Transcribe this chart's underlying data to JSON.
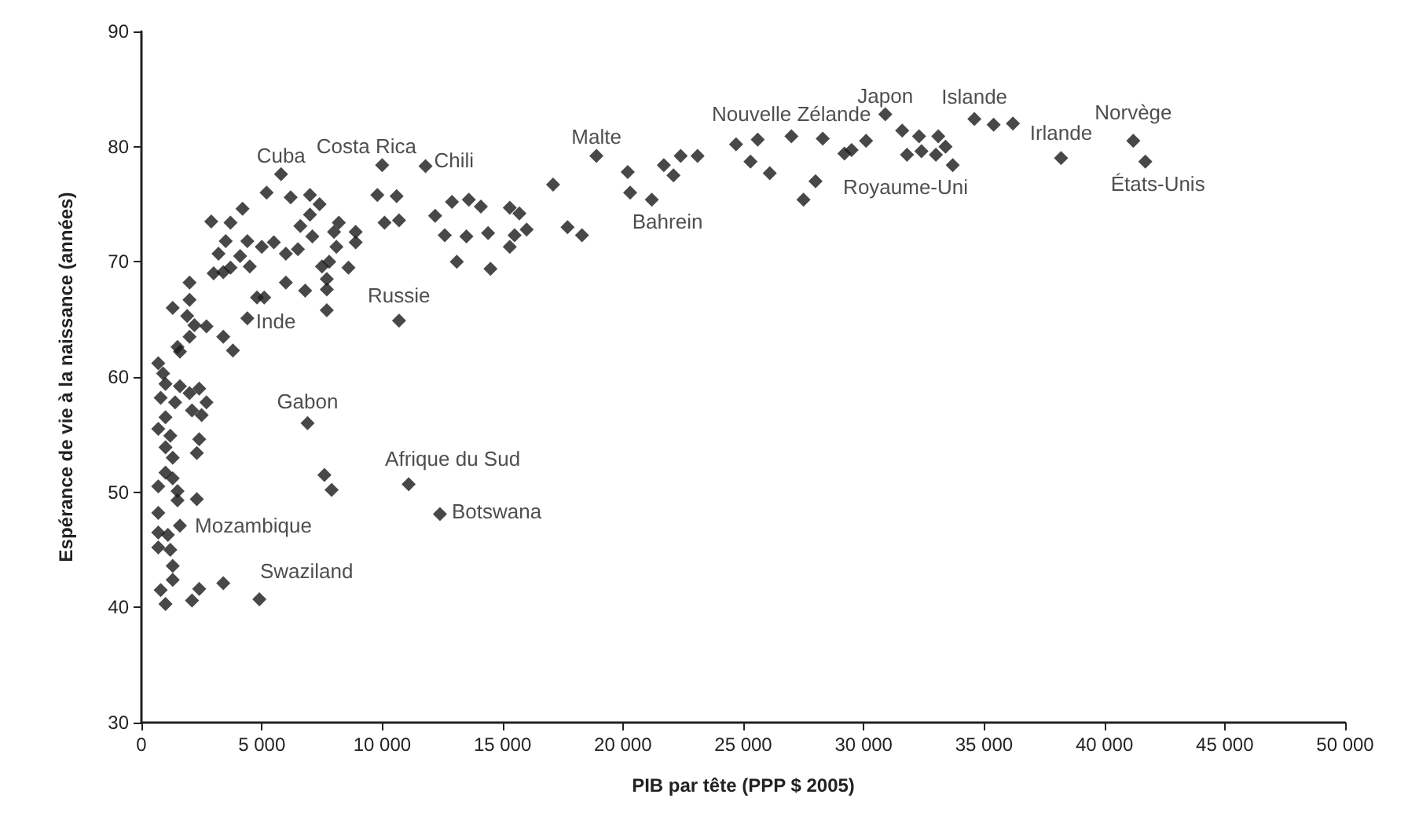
{
  "chart_data": {
    "type": "scatter",
    "xlabel": "PIB par tête (PPP $ 2005)",
    "ylabel": "Espérance de vie à la naissance (années)",
    "marker": "diamond",
    "grid": false,
    "xlim": [
      0,
      50000
    ],
    "ylim": [
      30,
      90
    ],
    "xticks": [
      0,
      {
        "value": 5000,
        "label": "5 000"
      },
      {
        "value": 10000,
        "label": "10 000"
      },
      {
        "value": 15000,
        "label": "15 000"
      },
      {
        "value": 20000,
        "label": "20 000"
      },
      {
        "value": 25000,
        "label": "25 000"
      },
      {
        "value": 30000,
        "label": "30 000"
      },
      {
        "value": 35000,
        "label": "35 000"
      },
      {
        "value": 40000,
        "label": "40 000"
      },
      {
        "value": 45000,
        "label": "45 000"
      },
      {
        "value": 50000,
        "label": "50 000"
      }
    ],
    "yticks": [
      30,
      40,
      50,
      60,
      70,
      80,
      90
    ],
    "series": [
      {
        "color": "#1a1a1a",
        "x": [
          5800,
          5200,
          6200,
          7000,
          7400,
          4200,
          2900,
          3700,
          3500,
          3200,
          3000,
          3400,
          3700,
          4100,
          4400,
          5000,
          5500,
          6000,
          6500,
          4500,
          6600,
          7000,
          7100,
          4800,
          5100,
          6000,
          6800,
          7700,
          7700,
          7700,
          7500,
          7800,
          8100,
          8000,
          8200,
          8600,
          8900,
          8900,
          4400,
          3800,
          3400,
          2700,
          1300,
          2000,
          2000,
          1900,
          2200,
          2000,
          1600,
          1500,
          700,
          900,
          1000,
          1600,
          2000,
          2400,
          2700,
          2500,
          2100,
          1400,
          800,
          1000,
          700,
          1200,
          1000,
          2400,
          2300,
          1300,
          1000,
          1300,
          700,
          1500,
          1500,
          2300,
          700,
          1600,
          700,
          1100,
          700,
          1200,
          1300,
          1300,
          800,
          1000,
          2100,
          2400,
          3400,
          4900,
          6900,
          7600,
          7900,
          11100,
          12400,
          10700,
          10000,
          11800,
          9800,
          10600,
          10100,
          10700,
          12200,
          12600,
          12900,
          13500,
          13100,
          13600,
          14100,
          14400,
          14500,
          15300,
          15700,
          15500,
          16000,
          15300,
          17100,
          17700,
          18300,
          18900,
          20200,
          20300,
          21200,
          21700,
          22100,
          22400,
          23100,
          24700,
          25600,
          25300,
          26100,
          27000,
          28300,
          27500,
          28000,
          29200,
          29500,
          30100,
          30900,
          31600,
          32300,
          33100,
          33400,
          31800,
          32400,
          33000,
          33700,
          34600,
          35400,
          36200,
          38200,
          41200,
          41700
        ],
        "values": [
          77.6,
          76.0,
          75.6,
          75.8,
          75.0,
          74.6,
          73.5,
          73.4,
          71.8,
          70.7,
          69.0,
          69.1,
          69.5,
          70.5,
          71.8,
          71.3,
          71.7,
          70.7,
          71.1,
          69.6,
          73.1,
          74.1,
          72.2,
          66.9,
          66.9,
          68.2,
          67.5,
          65.8,
          67.6,
          68.5,
          69.6,
          70.0,
          71.3,
          72.6,
          73.4,
          69.5,
          72.6,
          71.7,
          65.1,
          62.3,
          63.5,
          64.4,
          66.0,
          68.2,
          66.7,
          65.3,
          64.5,
          63.5,
          62.2,
          62.6,
          61.2,
          60.3,
          59.4,
          59.2,
          58.6,
          59.0,
          57.8,
          56.7,
          57.1,
          57.8,
          58.2,
          56.5,
          55.5,
          54.9,
          53.9,
          54.6,
          53.4,
          53.0,
          51.7,
          51.2,
          50.5,
          50.1,
          49.3,
          49.4,
          48.2,
          47.1,
          46.5,
          46.3,
          45.2,
          45.0,
          43.6,
          42.4,
          41.5,
          40.3,
          40.6,
          41.6,
          42.1,
          40.7,
          56.0,
          51.5,
          50.2,
          50.7,
          48.1,
          64.9,
          78.4,
          78.3,
          75.8,
          75.7,
          73.4,
          73.6,
          74.0,
          72.3,
          75.2,
          72.2,
          70.0,
          75.4,
          74.8,
          72.5,
          69.4,
          74.7,
          74.2,
          72.3,
          72.8,
          71.3,
          76.7,
          73.0,
          72.3,
          79.2,
          77.8,
          76.0,
          75.4,
          78.4,
          77.5,
          79.2,
          79.2,
          80.2,
          80.6,
          78.7,
          77.7,
          80.9,
          80.7,
          75.4,
          77.0,
          79.4,
          79.7,
          80.5,
          82.8,
          81.4,
          80.9,
          80.9,
          80.0,
          79.3,
          79.6,
          79.3,
          78.4,
          82.4,
          81.9,
          82.0,
          79.0,
          80.5,
          78.7
        ]
      }
    ],
    "annotations": [
      {
        "text": "Cuba",
        "x": 5800,
        "y": 77.6
      },
      {
        "text": "Costa Rica",
        "x": 10000,
        "y": 78.4
      },
      {
        "text": "Chili",
        "x": 11800,
        "y": 78.3
      },
      {
        "text": "Inde",
        "x": 4400,
        "y": 65.1
      },
      {
        "text": "Russie",
        "x": 10700,
        "y": 64.9
      },
      {
        "text": "Gabon",
        "x": 6900,
        "y": 56.0
      },
      {
        "text": "Afrique du Sud",
        "x": 11100,
        "y": 50.7
      },
      {
        "text": "Botswana",
        "x": 12400,
        "y": 48.1
      },
      {
        "text": "Mozambique",
        "x": 1600,
        "y": 47.1
      },
      {
        "text": "Swaziland",
        "x": 4900,
        "y": 40.7
      },
      {
        "text": "Malte",
        "x": 18900,
        "y": 79.2
      },
      {
        "text": "Bahrein",
        "x": 21200,
        "y": 75.4
      },
      {
        "text": "Nouvelle Zélande",
        "x": 27000,
        "y": 80.9
      },
      {
        "text": "Japon",
        "x": 30900,
        "y": 82.8
      },
      {
        "text": "Islande",
        "x": 34600,
        "y": 82.4
      },
      {
        "text": "Irlande",
        "x": 38200,
        "y": 79.0
      },
      {
        "text": "Norvège",
        "x": 41200,
        "y": 80.5
      },
      {
        "text": "États-Unis",
        "x": 41700,
        "y": 78.7
      },
      {
        "text": "Royaume-Uni",
        "x": 33700,
        "y": 78.4
      }
    ]
  }
}
